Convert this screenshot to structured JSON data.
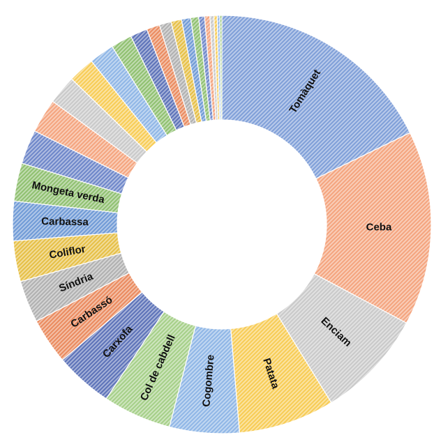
{
  "chart_data": {
    "type": "pie",
    "variant": "doughnut",
    "fill_pattern": "diagonal-hatch",
    "slices": [
      {
        "label": "Tomàquet",
        "value": 17.5,
        "color": "#7f9fd8"
      },
      {
        "label": "Ceba",
        "value": 14.8,
        "color": "#f4a47e"
      },
      {
        "label": "Enciam",
        "value": 8.3,
        "color": "#c9c9c9"
      },
      {
        "label": "Patata",
        "value": 7.3,
        "color": "#f7cc55"
      },
      {
        "label": "Cogombre",
        "value": 5.3,
        "color": "#8fb6e6"
      },
      {
        "label": "Col de cabdell",
        "value": 5.2,
        "color": "#a5cf88"
      },
      {
        "label": "Carxofa",
        "value": 4.4,
        "color": "#5c72b8"
      },
      {
        "label": "Carbassó",
        "value": 3.5,
        "color": "#ea8a5e"
      },
      {
        "label": "Síndria",
        "value": 3.2,
        "color": "#b0b0b0"
      },
      {
        "label": "Coliflor",
        "value": 3.1,
        "color": "#e6bf45"
      },
      {
        "label": "Carbassa",
        "value": 3.0,
        "color": "#6f9ad6"
      },
      {
        "label": "Mongeta verda",
        "value": 2.9,
        "color": "#8fc070"
      },
      {
        "label": "",
        "value": 2.6,
        "color": "#6d86c9"
      },
      {
        "label": "",
        "value": 2.6,
        "color": "#f4a47e"
      },
      {
        "label": "",
        "value": 2.2,
        "color": "#c9c9c9"
      },
      {
        "label": "",
        "value": 2.0,
        "color": "#f7cc55"
      },
      {
        "label": "",
        "value": 1.9,
        "color": "#8fb6e6"
      },
      {
        "label": "",
        "value": 1.6,
        "color": "#8fc070"
      },
      {
        "label": "",
        "value": 1.3,
        "color": "#5c72b8"
      },
      {
        "label": "",
        "value": 1.0,
        "color": "#ea8a5e"
      },
      {
        "label": "",
        "value": 0.9,
        "color": "#b0b0b0"
      },
      {
        "label": "",
        "value": 0.8,
        "color": "#e6bf45"
      },
      {
        "label": "",
        "value": 0.7,
        "color": "#6f9ad6"
      },
      {
        "label": "",
        "value": 0.6,
        "color": "#8fc070"
      },
      {
        "label": "",
        "value": 0.45,
        "color": "#6d86c9"
      },
      {
        "label": "",
        "value": 0.4,
        "color": "#f4a47e"
      },
      {
        "label": "",
        "value": 0.3,
        "color": "#c9c9c9"
      },
      {
        "label": "",
        "value": 0.25,
        "color": "#f7cc55"
      },
      {
        "label": "",
        "value": 0.2,
        "color": "#8fb6e6"
      },
      {
        "label": "",
        "value": 0.15,
        "color": "#8fc070"
      }
    ]
  }
}
